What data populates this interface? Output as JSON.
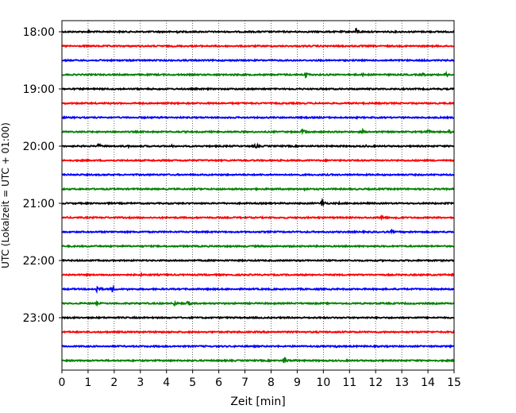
{
  "chart_data": {
    "type": "line",
    "xlabel": "Zeit  [min]",
    "ylabel": "UTC (Lokalzeit = UTC + 01:00)",
    "xlim": [
      0,
      15
    ],
    "x_ticks": [
      0,
      1,
      2,
      3,
      4,
      5,
      6,
      7,
      8,
      9,
      10,
      11,
      12,
      13,
      14,
      15
    ],
    "grid": "vertical dotted lines at each minute",
    "y_tick_labels": [
      "18:00",
      "19:00",
      "20:00",
      "21:00",
      "22:00",
      "23:00"
    ],
    "trace_interval_min": 15,
    "colors": [
      "#000000",
      "#ff0000",
      "#0000ff",
      "#008000"
    ],
    "traces": [
      {
        "start": "18:00",
        "color": "#000000",
        "events": [
          {
            "t": 1.0,
            "amp": 0.2
          },
          {
            "t": 4.4,
            "amp": 0.2
          },
          {
            "t": 11.25,
            "amp": 0.55
          }
        ]
      },
      {
        "start": "18:15",
        "color": "#ff0000",
        "events": [
          {
            "t": 4.5,
            "amp": 0.08
          },
          {
            "t": 14.5,
            "amp": 0.08
          }
        ]
      },
      {
        "start": "18:30",
        "color": "#0000ff",
        "events": [
          {
            "t": 2.5,
            "amp": 0.15
          },
          {
            "t": 7.5,
            "amp": 0.07
          },
          {
            "t": 13.3,
            "amp": 0.1
          }
        ]
      },
      {
        "start": "18:45",
        "color": "#008000",
        "events": [
          {
            "t": 6.6,
            "amp": 0.2
          },
          {
            "t": 9.3,
            "amp": 0.55
          },
          {
            "t": 11.5,
            "amp": 0.2
          },
          {
            "t": 13.8,
            "amp": 0.3
          },
          {
            "t": 14.7,
            "amp": 0.3
          }
        ]
      },
      {
        "start": "19:00",
        "color": "#000000",
        "events": [
          {
            "t": 1.5,
            "amp": 0.07
          },
          {
            "t": 9.0,
            "amp": 0.1
          }
        ]
      },
      {
        "start": "19:15",
        "color": "#ff0000",
        "events": [
          {
            "t": 5.8,
            "amp": 0.12
          },
          {
            "t": 10.8,
            "amp": 0.1
          }
        ]
      },
      {
        "start": "19:30",
        "color": "#0000ff",
        "events": [
          {
            "t": 3.0,
            "amp": 0.06
          },
          {
            "t": 12.0,
            "amp": 0.06
          }
        ]
      },
      {
        "start": "19:45",
        "color": "#008000",
        "events": [
          {
            "t": 9.2,
            "amp": 0.4
          },
          {
            "t": 11.5,
            "amp": 0.3
          },
          {
            "t": 14.0,
            "amp": 0.3
          },
          {
            "t": 14.8,
            "amp": 0.3
          }
        ]
      },
      {
        "start": "20:00",
        "color": "#000000",
        "events": [
          {
            "t": 1.4,
            "amp": 0.35
          },
          {
            "t": 2.5,
            "amp": 0.25
          },
          {
            "t": 4.2,
            "amp": 0.2
          },
          {
            "t": 7.4,
            "amp": 0.35
          },
          {
            "t": 11.6,
            "amp": 0.2
          }
        ]
      },
      {
        "start": "20:15",
        "color": "#ff0000",
        "events": [
          {
            "t": 3.3,
            "amp": 0.07
          },
          {
            "t": 9.3,
            "amp": 0.07
          },
          {
            "t": 14.0,
            "amp": 0.07
          }
        ]
      },
      {
        "start": "20:30",
        "color": "#0000ff",
        "events": [
          {
            "t": 6.0,
            "amp": 0.06
          }
        ]
      },
      {
        "start": "20:45",
        "color": "#008000",
        "events": [
          {
            "t": 7.5,
            "amp": 0.1
          },
          {
            "t": 9.3,
            "amp": 0.25
          },
          {
            "t": 11.0,
            "amp": 0.08
          }
        ]
      },
      {
        "start": "21:00",
        "color": "#000000",
        "events": [
          {
            "t": 9.95,
            "amp": 0.6
          },
          {
            "t": 10.6,
            "amp": 0.15
          }
        ]
      },
      {
        "start": "21:15",
        "color": "#ff0000",
        "events": [
          {
            "t": 12.2,
            "amp": 0.45
          },
          {
            "t": 12.8,
            "amp": 0.35
          }
        ]
      },
      {
        "start": "21:30",
        "color": "#0000ff",
        "events": [
          {
            "t": 1.2,
            "amp": 0.15
          },
          {
            "t": 12.6,
            "amp": 0.25
          },
          {
            "t": 13.3,
            "amp": 0.15
          }
        ]
      },
      {
        "start": "21:45",
        "color": "#008000",
        "events": [
          {
            "t": 5.0,
            "amp": 0.06
          },
          {
            "t": 11.0,
            "amp": 0.07
          }
        ]
      },
      {
        "start": "22:00",
        "color": "#000000",
        "events": [
          {
            "t": 5.5,
            "amp": 0.06
          }
        ]
      },
      {
        "start": "22:15",
        "color": "#ff0000",
        "events": [
          {
            "t": 3.0,
            "amp": 0.2
          },
          {
            "t": 7.0,
            "amp": 0.07
          }
        ]
      },
      {
        "start": "22:30",
        "color": "#0000ff",
        "events": [
          {
            "t": 1.35,
            "amp": 0.6
          },
          {
            "t": 1.9,
            "amp": 0.55
          },
          {
            "t": 2.5,
            "amp": 0.15
          }
        ]
      },
      {
        "start": "22:45",
        "color": "#008000",
        "events": [
          {
            "t": 1.3,
            "amp": 0.2
          },
          {
            "t": 4.3,
            "amp": 0.35
          },
          {
            "t": 4.8,
            "amp": 0.45
          },
          {
            "t": 13.0,
            "amp": 0.12
          },
          {
            "t": 14.3,
            "amp": 0.12
          }
        ]
      },
      {
        "start": "23:00",
        "color": "#000000",
        "events": [
          {
            "t": 2.0,
            "amp": 0.07
          },
          {
            "t": 8.0,
            "amp": 0.07
          }
        ]
      },
      {
        "start": "23:15",
        "color": "#ff0000",
        "events": [
          {
            "t": 3.6,
            "amp": 0.2
          },
          {
            "t": 9.0,
            "amp": 0.06
          }
        ]
      },
      {
        "start": "23:30",
        "color": "#0000ff",
        "events": [
          {
            "t": 2.9,
            "amp": 0.15
          },
          {
            "t": 10.5,
            "amp": 0.2
          }
        ]
      },
      {
        "start": "23:45",
        "color": "#008000",
        "events": [
          {
            "t": 8.5,
            "amp": 0.6
          },
          {
            "t": 8.95,
            "amp": 0.2
          }
        ]
      }
    ]
  }
}
